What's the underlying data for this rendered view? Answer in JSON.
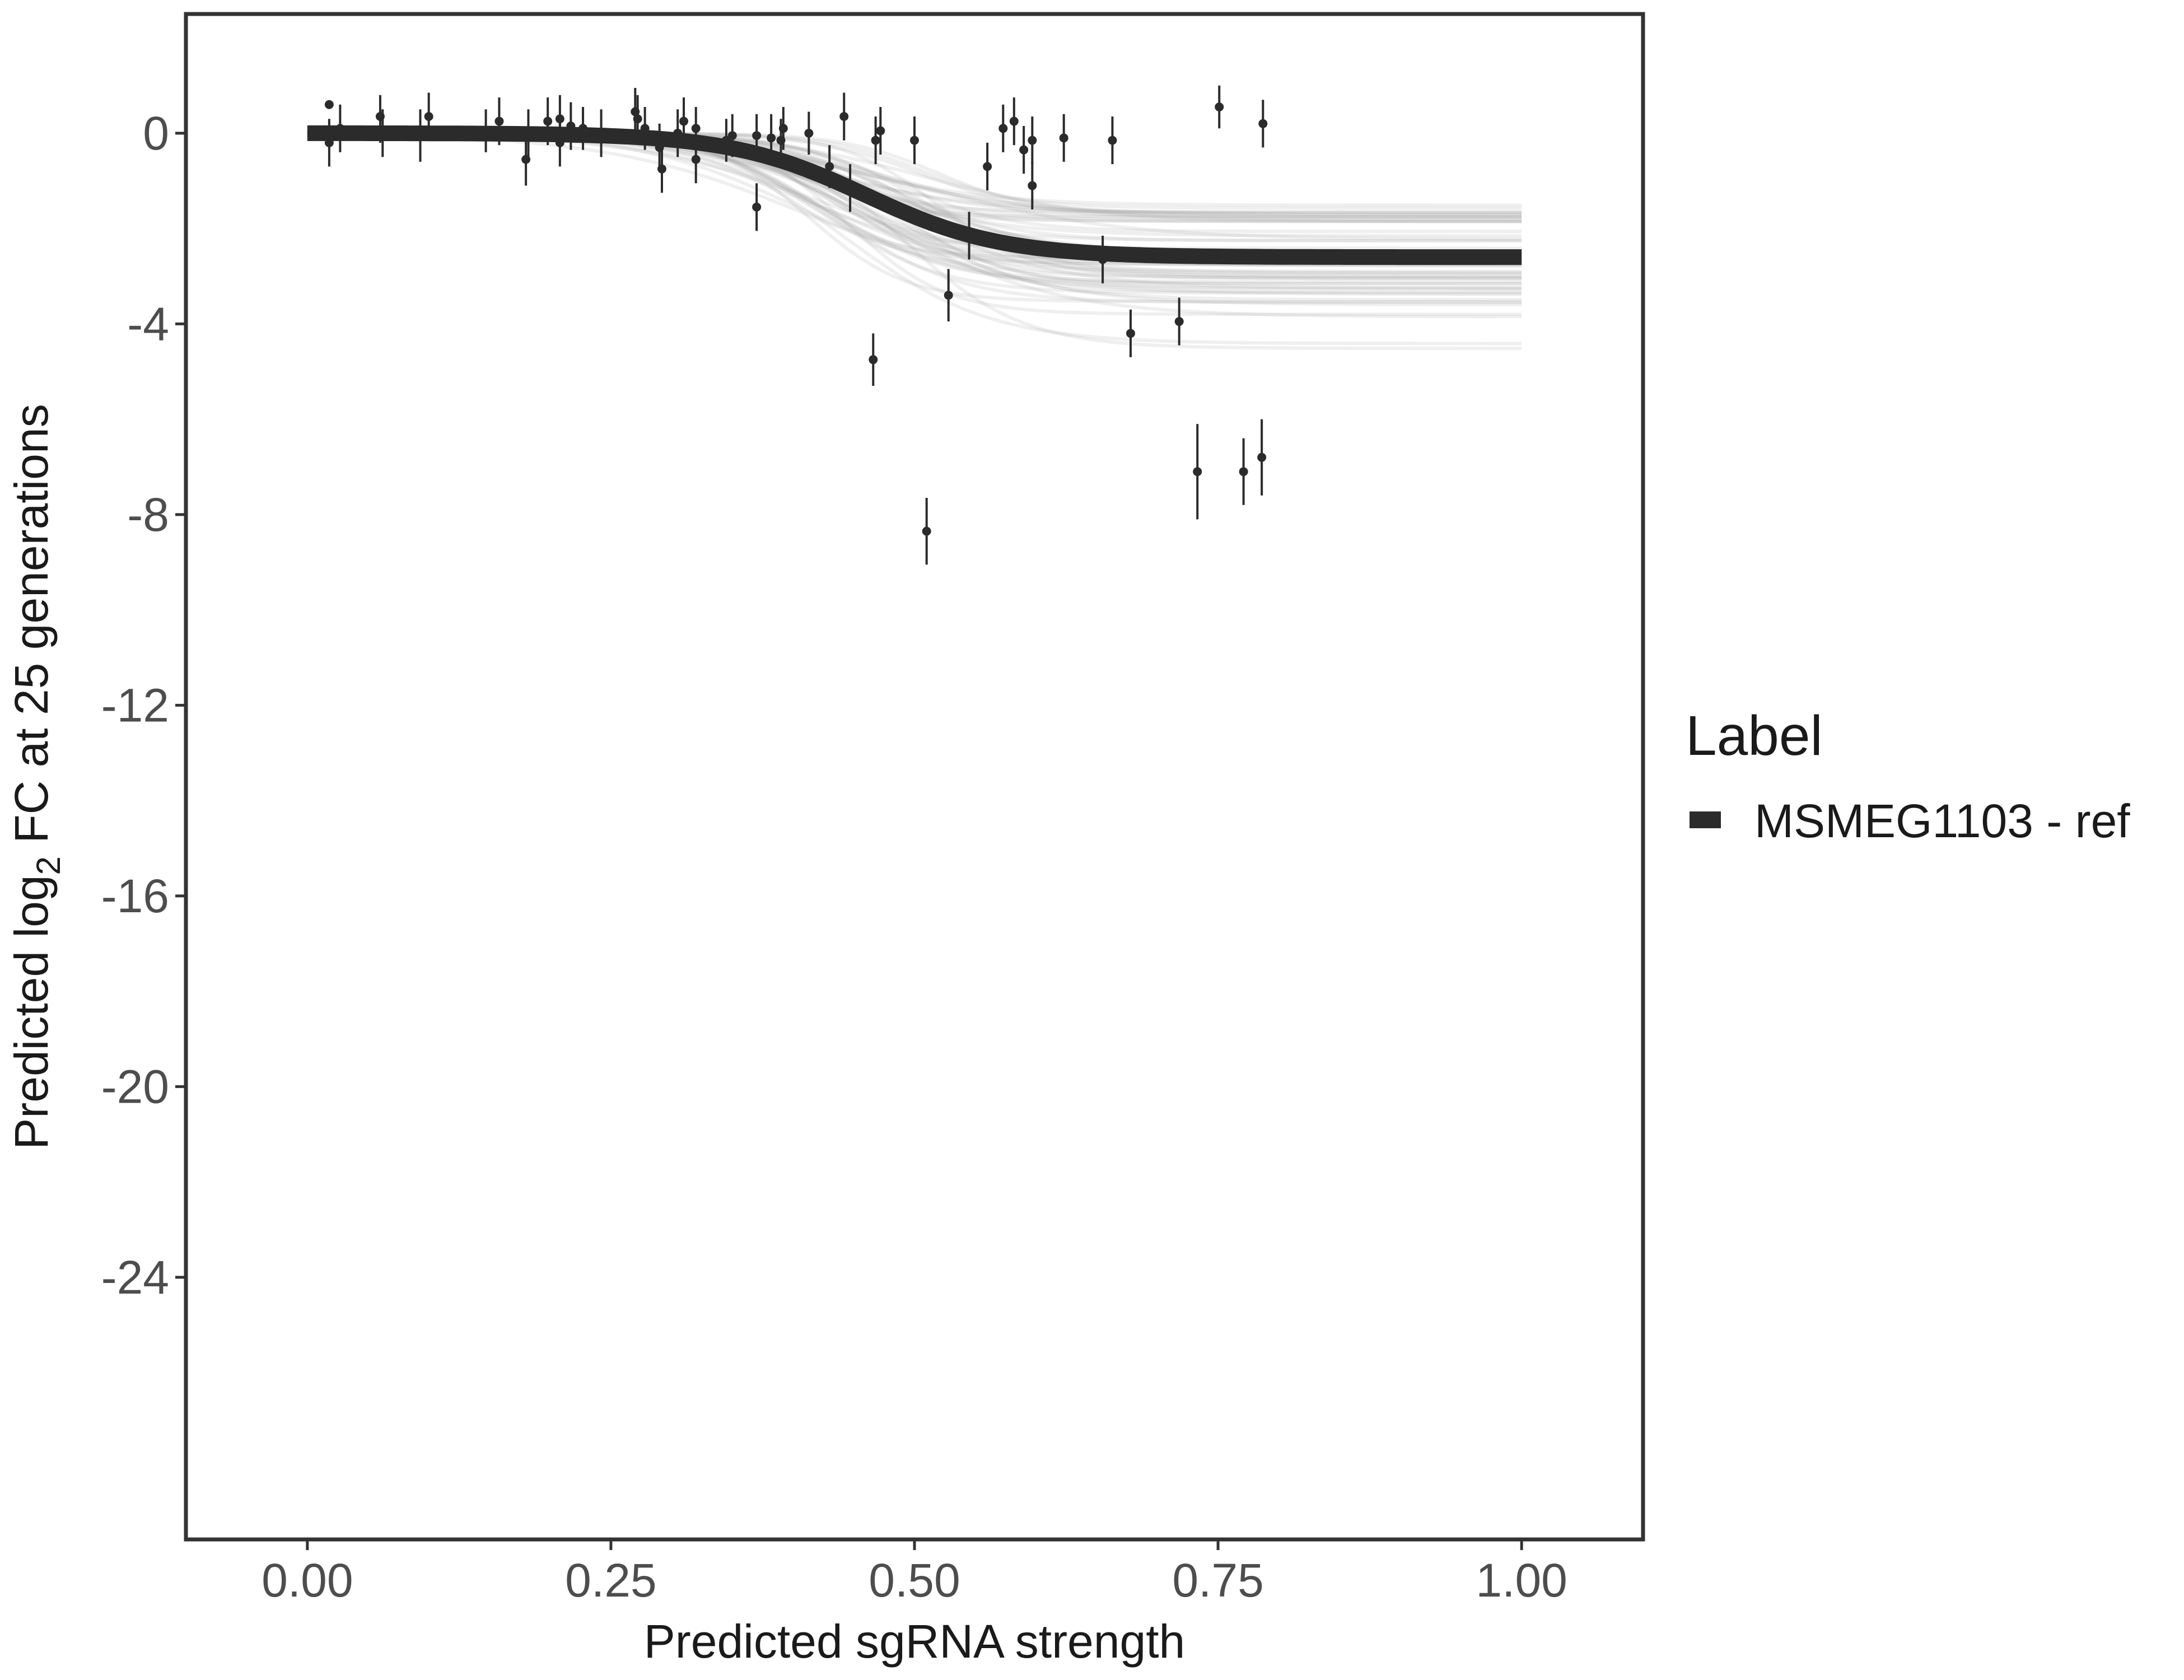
{
  "chart_data": {
    "type": "scatter",
    "title": "",
    "xlabel": "Predicted sgRNA strength",
    "ylabel_parts": [
      "Predicted  log",
      "2",
      " FC at 25 generations"
    ],
    "xlim": [
      -0.1,
      1.1
    ],
    "ylim": [
      -29.5,
      2.5
    ],
    "x_ticks": [
      0.0,
      0.25,
      0.5,
      0.75,
      1.0
    ],
    "x_tick_labels": [
      "0.00",
      "0.25",
      "0.50",
      "0.75",
      "1.00"
    ],
    "y_ticks": [
      0,
      -4,
      -8,
      -12,
      -16,
      -20,
      -24
    ],
    "y_tick_labels": [
      "0",
      "-4",
      "-8",
      "-12",
      "-16",
      "-20",
      "-24"
    ],
    "grid": false,
    "legend": {
      "title": "Label",
      "entries": [
        "MSMEG1103 - ref"
      ],
      "position": "right"
    },
    "fit_curve": {
      "model": "logistic",
      "lower": -2.6,
      "midpoint": 0.46,
      "slope": 18,
      "x_range": [
        0.0,
        1.0
      ]
    },
    "posterior_draws": {
      "count": 60,
      "lower_range": [
        -4.6,
        -1.2
      ],
      "midpoint_range": [
        0.4,
        0.52
      ],
      "slope_range": [
        12,
        26
      ]
    },
    "points": [
      {
        "x": 0.018,
        "y": 0.6,
        "lo": 0.6,
        "hi": 0.6
      },
      {
        "x": 0.018,
        "y": -0.2,
        "lo": -0.7,
        "hi": 0.3
      },
      {
        "x": 0.027,
        "y": 0.1,
        "lo": -0.4,
        "hi": 0.6
      },
      {
        "x": 0.06,
        "y": 0.35,
        "lo": -0.2,
        "hi": 0.8
      },
      {
        "x": 0.062,
        "y": 0.0,
        "lo": -0.5,
        "hi": 0.5
      },
      {
        "x": 0.093,
        "y": -0.05,
        "lo": -0.6,
        "hi": 0.5
      },
      {
        "x": 0.1,
        "y": 0.35,
        "lo": -0.15,
        "hi": 0.85
      },
      {
        "x": 0.147,
        "y": 0.05,
        "lo": -0.4,
        "hi": 0.5
      },
      {
        "x": 0.158,
        "y": 0.25,
        "lo": -0.25,
        "hi": 0.75
      },
      {
        "x": 0.18,
        "y": -0.55,
        "lo": -1.1,
        "hi": 0.0
      },
      {
        "x": 0.182,
        "y": 0.0,
        "lo": -0.5,
        "hi": 0.5
      },
      {
        "x": 0.198,
        "y": 0.25,
        "lo": -0.25,
        "hi": 0.75
      },
      {
        "x": 0.208,
        "y": -0.2,
        "lo": -0.7,
        "hi": 0.3
      },
      {
        "x": 0.208,
        "y": 0.3,
        "lo": -0.2,
        "hi": 0.8
      },
      {
        "x": 0.217,
        "y": 0.15,
        "lo": -0.35,
        "hi": 0.65
      },
      {
        "x": 0.227,
        "y": 0.1,
        "lo": -0.35,
        "hi": 0.55
      },
      {
        "x": 0.242,
        "y": 0.0,
        "lo": -0.5,
        "hi": 0.5
      },
      {
        "x": 0.27,
        "y": 0.45,
        "lo": -0.05,
        "hi": 0.95
      },
      {
        "x": 0.272,
        "y": 0.3,
        "lo": -0.2,
        "hi": 0.8
      },
      {
        "x": 0.278,
        "y": 0.1,
        "lo": -0.35,
        "hi": 0.55
      },
      {
        "x": 0.29,
        "y": -0.3,
        "lo": -0.8,
        "hi": 0.2
      },
      {
        "x": 0.292,
        "y": -0.75,
        "lo": -1.25,
        "hi": -0.25
      },
      {
        "x": 0.305,
        "y": 0.0,
        "lo": -0.5,
        "hi": 0.5
      },
      {
        "x": 0.31,
        "y": 0.25,
        "lo": -0.25,
        "hi": 0.75
      },
      {
        "x": 0.32,
        "y": 0.1,
        "lo": -0.35,
        "hi": 0.55
      },
      {
        "x": 0.32,
        "y": -0.55,
        "lo": -1.05,
        "hi": -0.05
      },
      {
        "x": 0.345,
        "y": -0.15,
        "lo": -0.6,
        "hi": 0.3
      },
      {
        "x": 0.35,
        "y": -0.05,
        "lo": -0.5,
        "hi": 0.4
      },
      {
        "x": 0.37,
        "y": -0.05,
        "lo": -0.5,
        "hi": 0.4
      },
      {
        "x": 0.37,
        "y": -1.55,
        "lo": -2.05,
        "hi": -1.05
      },
      {
        "x": 0.382,
        "y": -0.1,
        "lo": -0.6,
        "hi": 0.4
      },
      {
        "x": 0.39,
        "y": -0.15,
        "lo": -0.6,
        "hi": 0.3
      },
      {
        "x": 0.392,
        "y": 0.1,
        "lo": -0.35,
        "hi": 0.55
      },
      {
        "x": 0.413,
        "y": 0.0,
        "lo": -0.45,
        "hi": 0.45
      },
      {
        "x": 0.43,
        "y": -0.7,
        "lo": -1.15,
        "hi": -0.25
      },
      {
        "x": 0.442,
        "y": 0.35,
        "lo": -0.15,
        "hi": 0.85
      },
      {
        "x": 0.447,
        "y": -1.15,
        "lo": -1.65,
        "hi": -0.65
      },
      {
        "x": 0.466,
        "y": -4.75,
        "lo": -5.3,
        "hi": -4.2
      },
      {
        "x": 0.468,
        "y": -0.15,
        "lo": -0.65,
        "hi": 0.35
      },
      {
        "x": 0.472,
        "y": 0.05,
        "lo": -0.45,
        "hi": 0.55
      },
      {
        "x": 0.5,
        "y": -0.15,
        "lo": -0.65,
        "hi": 0.35
      },
      {
        "x": 0.51,
        "y": -8.35,
        "lo": -9.05,
        "hi": -7.65
      },
      {
        "x": 0.528,
        "y": -3.4,
        "lo": -3.95,
        "hi": -2.85
      },
      {
        "x": 0.545,
        "y": -2.15,
        "lo": -2.65,
        "hi": -1.65
      },
      {
        "x": 0.56,
        "y": -0.7,
        "lo": -1.2,
        "hi": -0.2
      },
      {
        "x": 0.573,
        "y": 0.1,
        "lo": -0.4,
        "hi": 0.6
      },
      {
        "x": 0.582,
        "y": 0.25,
        "lo": -0.25,
        "hi": 0.75
      },
      {
        "x": 0.59,
        "y": -0.35,
        "lo": -0.85,
        "hi": 0.15
      },
      {
        "x": 0.597,
        "y": -0.15,
        "lo": -0.65,
        "hi": 0.35
      },
      {
        "x": 0.597,
        "y": -1.1,
        "lo": -1.6,
        "hi": -0.6
      },
      {
        "x": 0.623,
        "y": -0.1,
        "lo": -0.6,
        "hi": 0.4
      },
      {
        "x": 0.655,
        "y": -2.65,
        "lo": -3.15,
        "hi": -2.15
      },
      {
        "x": 0.663,
        "y": -0.15,
        "lo": -0.65,
        "hi": 0.35
      },
      {
        "x": 0.678,
        "y": -4.2,
        "lo": -4.7,
        "hi": -3.7
      },
      {
        "x": 0.718,
        "y": -3.95,
        "lo": -4.45,
        "hi": -3.45
      },
      {
        "x": 0.733,
        "y": -7.1,
        "lo": -8.1,
        "hi": -6.1
      },
      {
        "x": 0.751,
        "y": 0.55,
        "lo": 0.1,
        "hi": 1.0
      },
      {
        "x": 0.771,
        "y": -7.1,
        "lo": -7.8,
        "hi": -6.4
      },
      {
        "x": 0.786,
        "y": -6.8,
        "lo": -7.6,
        "hi": -6.0
      },
      {
        "x": 0.787,
        "y": 0.2,
        "lo": -0.3,
        "hi": 0.7
      }
    ]
  },
  "colors": {
    "background": "#ffffff",
    "frame": "#333333",
    "tick_text": "#4d4d4d",
    "label_text": "#1a1a1a",
    "posterior": "#a6a6a6",
    "fit_line": "#2b2b2b",
    "points": "#2b2b2b"
  }
}
